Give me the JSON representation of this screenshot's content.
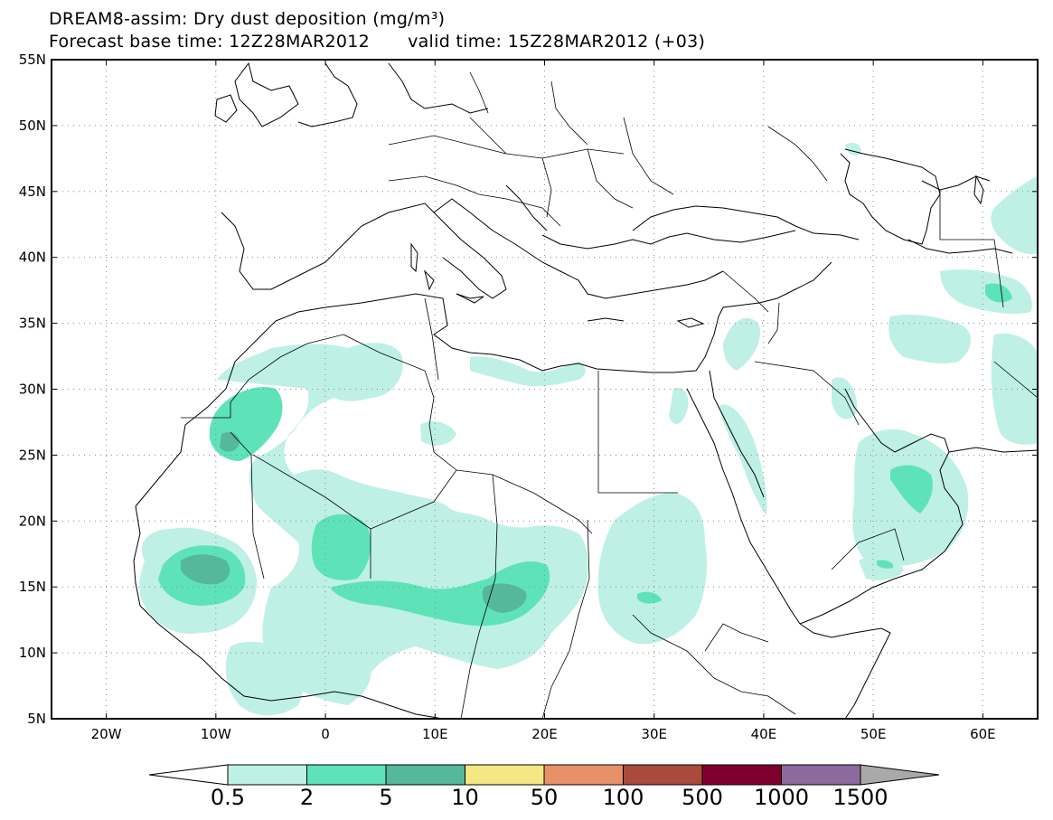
{
  "title": {
    "line1": "DREAM8-assim: Dry dust deposition (mg/m³)",
    "base_time": "Forecast base time: 12Z28MAR2012",
    "valid_time": "valid time: 15Z28MAR2012 (+03)"
  },
  "map": {
    "lat_labels": [
      "55N",
      "50N",
      "45N",
      "40N",
      "35N",
      "30N",
      "25N",
      "20N",
      "15N",
      "10N",
      "5N"
    ],
    "lon_labels": [
      "20W",
      "10W",
      "0",
      "10E",
      "20E",
      "30E",
      "40E",
      "50E",
      "60E"
    ],
    "lat_values": [
      55,
      50,
      45,
      40,
      35,
      30,
      25,
      20,
      15,
      10,
      5
    ],
    "lon_values": [
      -20,
      -10,
      0,
      10,
      20,
      30,
      40,
      50,
      60
    ],
    "extent": {
      "lon_min": -25,
      "lon_max": 65,
      "lat_min": 5,
      "lat_max": 55
    },
    "grid": "dotted",
    "land_color": "#ffffff",
    "boundary_color": "#000000"
  },
  "colorbar": {
    "labels": [
      "0.5",
      "2",
      "5",
      "10",
      "50",
      "100",
      "500",
      "1000",
      "1500"
    ],
    "colors": [
      "#ffffff",
      "#bff0e6",
      "#5ee3b8",
      "#55b89a",
      "#f5e783",
      "#e89169",
      "#a94a3d",
      "#80002d",
      "#8c6a9e",
      "#a9a9a9"
    ]
  }
}
